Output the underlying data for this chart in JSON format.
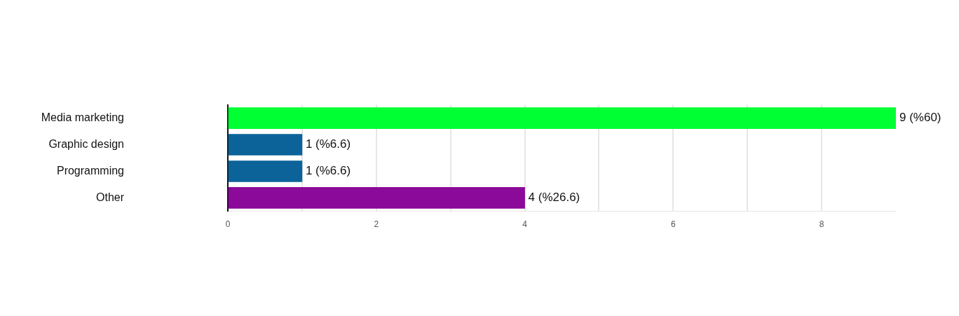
{
  "chart_data": {
    "type": "bar",
    "orientation": "horizontal",
    "categories": [
      "Media marketing",
      "Graphic design",
      "Programming",
      "Other"
    ],
    "values": [
      9,
      1,
      1,
      4
    ],
    "colors": [
      "#00ff33",
      "#0b6399",
      "#0b6399",
      "#8b0a99"
    ],
    "value_labels": [
      "9 (%60)",
      "1 (%6.6)",
      "1 (%6.6)",
      "4 (%26.6)"
    ],
    "xlim": [
      0,
      9
    ],
    "xticks": [
      0,
      {
        "value": 1,
        "label": null
      },
      2,
      {
        "value": 3,
        "label": null
      },
      4,
      {
        "value": 5,
        "label": null
      },
      6,
      {
        "value": 7,
        "label": null
      },
      8
    ],
    "grid": "x",
    "legend": false
  }
}
